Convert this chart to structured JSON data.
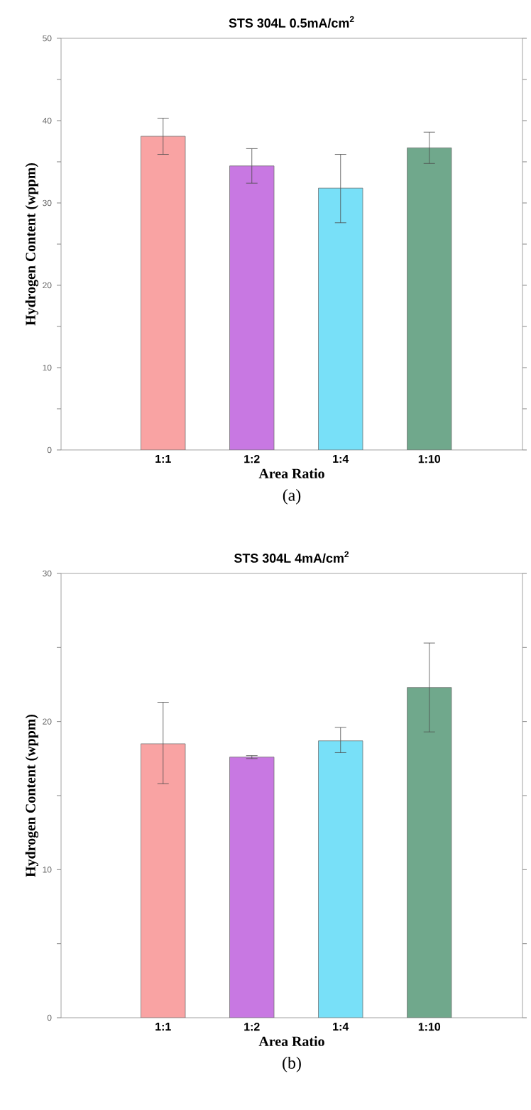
{
  "chart_data": [
    {
      "type": "bar",
      "title": "STS 304L 0.5mA/cm$^{2}$",
      "xlabel": "Area Ratio",
      "ylabel": "Hydrogen Content (wppm)",
      "categories": [
        "1:1",
        "1:2",
        "1:4",
        "1:10"
      ],
      "values": [
        38.1,
        34.5,
        31.8,
        36.7
      ],
      "colors": [
        "#f9a3a3",
        "#c878e2",
        "#78e0f8",
        "#70a88c"
      ],
      "errors": [
        2.2,
        2.1,
        [
          27.6,
          35.9
        ],
        1.9
      ],
      "ylim": [
        0,
        50
      ],
      "yticks": [
        0,
        {
          "value": 5,
          "label": null
        },
        10,
        {
          "value": 15,
          "label": null
        },
        20,
        {
          "value": 25,
          "label": null
        },
        30,
        {
          "value": 35,
          "label": null
        },
        40,
        {
          "value": 45,
          "label": null
        },
        50
      ],
      "annotations": [
        "(a)"
      ]
    },
    {
      "type": "bar",
      "title": "STS 304L 4mA/cm$^{2}$",
      "xlabel": "Area Ratio",
      "ylabel": "Hydrogen Content (wppm)",
      "categories": [
        "1:1",
        "1:2",
        "1:4",
        "1:10"
      ],
      "values": [
        18.5,
        17.6,
        18.7,
        22.3
      ],
      "colors": [
        "#f9a3a3",
        "#c878e2",
        "#78e0f8",
        "#70a88c"
      ],
      "errors": [
        [
          15.8,
          21.3
        ],
        0.1,
        [
          17.9,
          19.6
        ],
        [
          19.3,
          25.3
        ]
      ],
      "ylim": [
        0,
        30
      ],
      "yticks": [
        0,
        {
          "value": 5,
          "label": null
        },
        10,
        {
          "value": 15,
          "label": null
        },
        20,
        {
          "value": 25,
          "label": null
        },
        30
      ],
      "annotations": [
        "(b)"
      ]
    }
  ]
}
